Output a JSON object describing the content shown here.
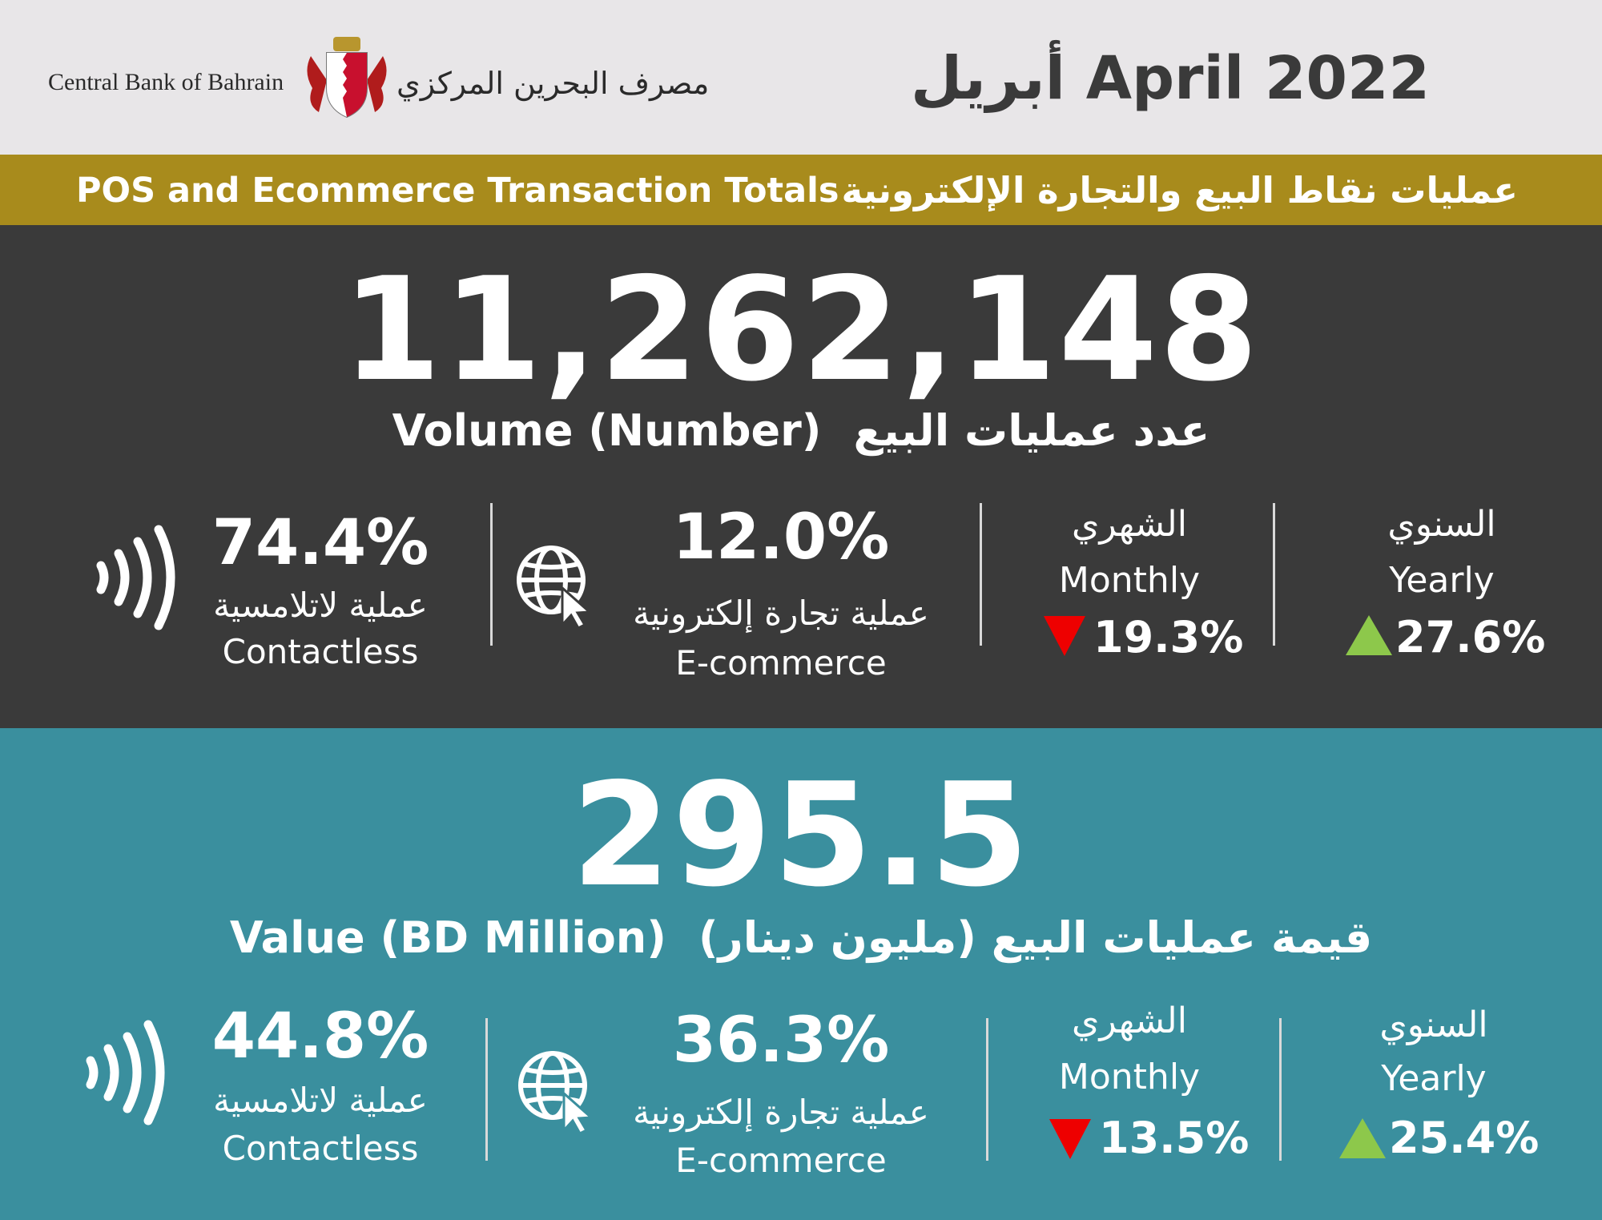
{
  "header": {
    "bank_name_en": "Central Bank of Bahrain",
    "bank_name_ar": "مصرف البحرين المركزي",
    "crest_icon": "bahrain-crest-icon",
    "date_title": "أبريل  April  2022"
  },
  "band": {
    "title_en": "POS and Ecommerce Transaction Totals",
    "title_ar": "عمليات نقاط البيع والتجارة الإلكترونية"
  },
  "volume": {
    "total": "11,262,148",
    "label_en": "Volume (Number)",
    "label_ar": "عدد عمليات البيع",
    "contactless": {
      "pct": "74.4%",
      "label_ar": "عملية لاتلامسية",
      "label_en": "Contactless",
      "icon": "contactless-icon"
    },
    "ecommerce": {
      "pct": "12.0%",
      "label_ar": "عملية تجارة إلكترونية",
      "label_en": "E-commerce",
      "icon": "globe-cursor-icon"
    },
    "monthly": {
      "label_ar": "الشهري",
      "label_en": "Monthly",
      "value": "19.3%",
      "direction": "down"
    },
    "yearly": {
      "label_ar": "السنوي",
      "label_en": "Yearly",
      "value": "27.6%",
      "direction": "up"
    }
  },
  "value": {
    "total": "295.5",
    "label_en": "Value (BD Million)",
    "label_ar": "قيمة عمليات البيع (مليون دينار)",
    "contactless": {
      "pct": "44.8%",
      "label_ar": "عملية لاتلامسية",
      "label_en": "Contactless",
      "icon": "contactless-icon"
    },
    "ecommerce": {
      "pct": "36.3%",
      "label_ar": "عملية تجارة إلكترونية",
      "label_en": "E-commerce",
      "icon": "globe-cursor-icon"
    },
    "monthly": {
      "label_ar": "الشهري",
      "label_en": "Monthly",
      "value": "13.5%",
      "direction": "down"
    },
    "yearly": {
      "label_ar": "السنوي",
      "label_en": "Yearly",
      "value": "25.4%",
      "direction": "up"
    }
  },
  "colors": {
    "header_bg": "#e8e6e8",
    "band_gold": "#a88b1c",
    "volume_bg": "#3a3a3a",
    "value_bg": "#3a8f9e",
    "up_green": "#8dc84b",
    "down_red": "#ee0000"
  }
}
